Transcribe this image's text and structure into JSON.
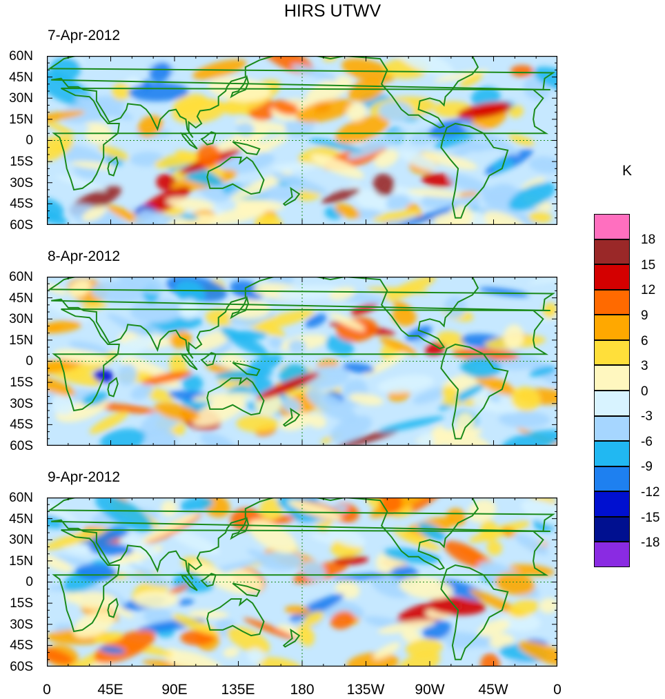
{
  "title": "HIRS UTWV",
  "panels": [
    {
      "date": "7-Apr-2012"
    },
    {
      "date": "8-Apr-2012"
    },
    {
      "date": "9-Apr-2012"
    }
  ],
  "lat_labels": [
    "60N",
    "45N",
    "30N",
    "15N",
    "0",
    "15S",
    "30S",
    "45S",
    "60S"
  ],
  "lon_labels": [
    "0",
    "45E",
    "90E",
    "135E",
    "180",
    "135W",
    "90W",
    "45W",
    "0"
  ],
  "colorbar": {
    "units": "K",
    "labels": [
      "18",
      "15",
      "12",
      "9",
      "6",
      "3",
      "0",
      "-3",
      "-6",
      "-9",
      "-12",
      "-15",
      "-18"
    ],
    "colors": [
      "#ff6fbf",
      "#9a2828",
      "#d40000",
      "#ff6a00",
      "#ffa800",
      "#ffdf3a",
      "#fff7bf",
      "#d8f3ff",
      "#a6d6ff",
      "#21b8f2",
      "#1e80f0",
      "#0010d0",
      "#001090",
      "#8a2be2"
    ]
  },
  "map_colors": {
    "coast": "#1a8a1a",
    "ocean_base": "#c6e8ff",
    "land_base": "#ffeaa5"
  }
}
